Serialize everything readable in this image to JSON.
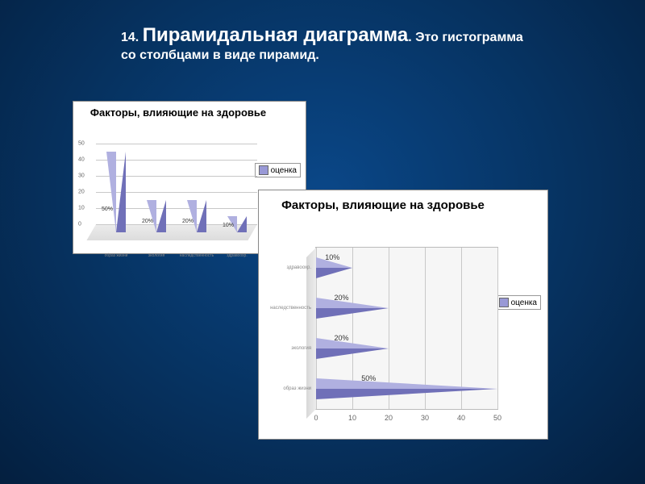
{
  "heading": {
    "number": "14.",
    "main": "Пирамидальная диаграмма",
    "rest": ". Это гистограмма",
    "line2": "со столбцами в виде пирамид."
  },
  "legend_label": "оценка",
  "legend_swatch_color": "#9999d6",
  "chart1": {
    "type": "pyramid-bar-vertical",
    "title": "Факторы, влияющие на здоровье",
    "title_fontsize": 13,
    "background_color": "#ffffff",
    "grid_color": "#c8c8c8",
    "pyramid_light": "#b0b0e0",
    "pyramid_dark": "#7070b8",
    "ylim": [
      0,
      50
    ],
    "ytick_step": 10,
    "categories": [
      "образ жизни",
      "экология",
      "наследственность",
      "здравоохр."
    ],
    "values": [
      50,
      20,
      20,
      10
    ],
    "data_labels": [
      "50%",
      "20%",
      "20%",
      "10%"
    ],
    "label_fontsize": 7
  },
  "chart2": {
    "type": "pyramid-bar-horizontal",
    "title": "Факторы, влияющие на здоровье",
    "title_fontsize": 15,
    "background_color": "#ffffff",
    "plot_bg": "#f6f6f6",
    "grid_color": "#c8c8c8",
    "pyramid_light": "#b0b0e0",
    "pyramid_dark": "#7070b8",
    "xlim": [
      0,
      50
    ],
    "xtick_step": 10,
    "categories": [
      "образ жизни",
      "экология",
      "наследственность",
      "здравоохр."
    ],
    "values": [
      50,
      20,
      20,
      10
    ],
    "data_labels": [
      "50%",
      "20%",
      "20%",
      "10%"
    ],
    "label_fontsize": 9
  }
}
